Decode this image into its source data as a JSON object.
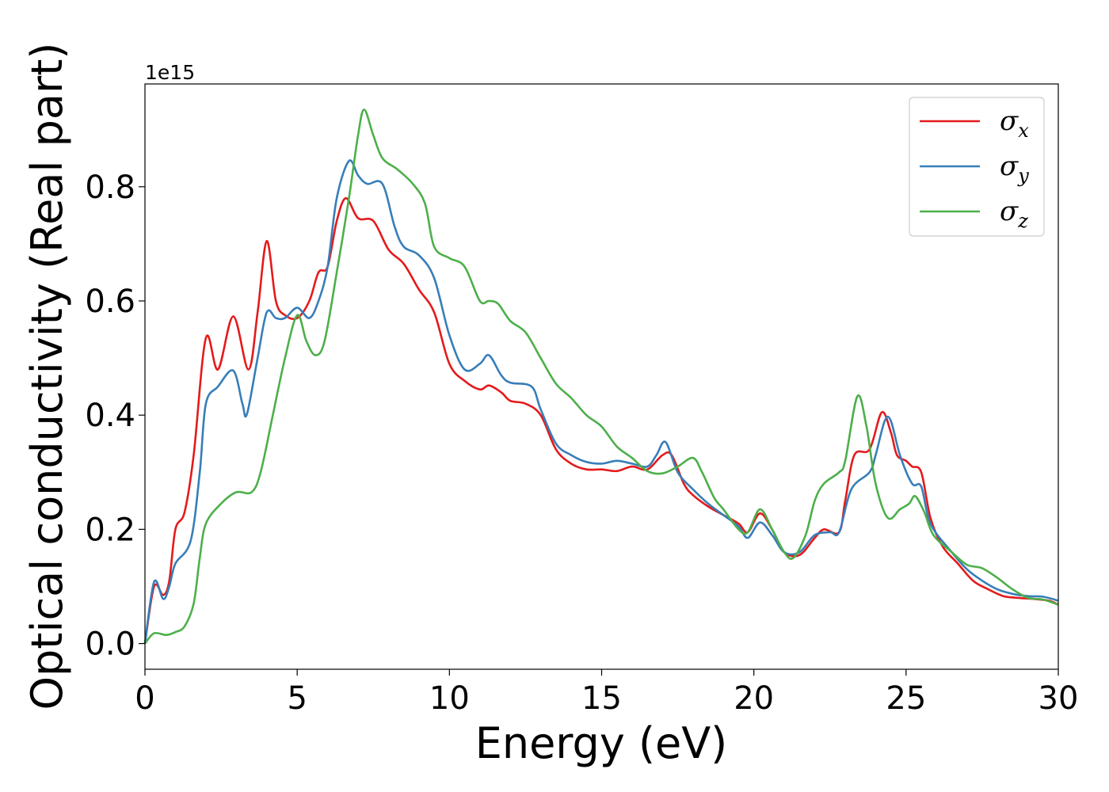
{
  "chart_data": {
    "type": "line",
    "title": "",
    "xlabel": "Energy (eV)",
    "ylabel": "Optical conductivity (Real part)",
    "y_offset_label": "1e15",
    "xlim": [
      0,
      30
    ],
    "ylim": [
      -0.045,
      0.98
    ],
    "x_ticks": [
      0,
      5,
      10,
      15,
      20,
      25,
      30
    ],
    "x_tick_labels": [
      "0",
      "5",
      "10",
      "15",
      "20",
      "25",
      "30"
    ],
    "y_ticks": [
      0.0,
      0.2,
      0.4,
      0.6,
      0.8
    ],
    "y_tick_labels": [
      "0.0",
      "0.2",
      "0.4",
      "0.6",
      "0.8"
    ],
    "grid": false,
    "legend_position": "top-right",
    "series": [
      {
        "name": "σ",
        "subscript": "x",
        "color": "#e41a1c",
        "points": [
          [
            0,
            0
          ],
          [
            0.3,
            0.1
          ],
          [
            0.6,
            0.085
          ],
          [
            0.8,
            0.11
          ],
          [
            1.0,
            0.2
          ],
          [
            1.3,
            0.23
          ],
          [
            1.6,
            0.33
          ],
          [
            2.0,
            0.535
          ],
          [
            2.4,
            0.48
          ],
          [
            2.9,
            0.573
          ],
          [
            3.4,
            0.48
          ],
          [
            3.7,
            0.58
          ],
          [
            4.0,
            0.705
          ],
          [
            4.3,
            0.6
          ],
          [
            4.6,
            0.575
          ],
          [
            5.0,
            0.57
          ],
          [
            5.4,
            0.6
          ],
          [
            5.7,
            0.65
          ],
          [
            6.0,
            0.66
          ],
          [
            6.3,
            0.74
          ],
          [
            6.6,
            0.78
          ],
          [
            7.0,
            0.745
          ],
          [
            7.5,
            0.74
          ],
          [
            8.0,
            0.69
          ],
          [
            8.5,
            0.665
          ],
          [
            9.0,
            0.62
          ],
          [
            9.5,
            0.58
          ],
          [
            10.0,
            0.49
          ],
          [
            10.5,
            0.46
          ],
          [
            11.0,
            0.445
          ],
          [
            11.3,
            0.452
          ],
          [
            11.7,
            0.44
          ],
          [
            12.0,
            0.425
          ],
          [
            12.5,
            0.42
          ],
          [
            13.0,
            0.4
          ],
          [
            13.5,
            0.34
          ],
          [
            14.0,
            0.315
          ],
          [
            14.5,
            0.305
          ],
          [
            15.0,
            0.305
          ],
          [
            15.5,
            0.302
          ],
          [
            16.0,
            0.31
          ],
          [
            16.5,
            0.305
          ],
          [
            17.0,
            0.33
          ],
          [
            17.3,
            0.33
          ],
          [
            17.7,
            0.28
          ],
          [
            18.0,
            0.26
          ],
          [
            18.5,
            0.24
          ],
          [
            19.0,
            0.225
          ],
          [
            19.5,
            0.21
          ],
          [
            19.8,
            0.195
          ],
          [
            20.2,
            0.228
          ],
          [
            20.6,
            0.2
          ],
          [
            21.0,
            0.16
          ],
          [
            21.5,
            0.155
          ],
          [
            22.0,
            0.185
          ],
          [
            22.3,
            0.2
          ],
          [
            22.8,
            0.195
          ],
          [
            23.0,
            0.25
          ],
          [
            23.3,
            0.33
          ],
          [
            23.8,
            0.34
          ],
          [
            24.2,
            0.405
          ],
          [
            24.5,
            0.37
          ],
          [
            24.7,
            0.33
          ],
          [
            25.0,
            0.32
          ],
          [
            25.2,
            0.31
          ],
          [
            25.5,
            0.3
          ],
          [
            25.8,
            0.22
          ],
          [
            26.2,
            0.17
          ],
          [
            26.7,
            0.14
          ],
          [
            27.2,
            0.11
          ],
          [
            27.7,
            0.095
          ],
          [
            28.2,
            0.083
          ],
          [
            28.7,
            0.08
          ],
          [
            29.2,
            0.078
          ],
          [
            29.7,
            0.075
          ],
          [
            30.0,
            0.068
          ]
        ]
      },
      {
        "name": "σ",
        "subscript": "y",
        "color": "#377eb8",
        "points": [
          [
            0,
            0
          ],
          [
            0.3,
            0.108
          ],
          [
            0.6,
            0.078
          ],
          [
            0.8,
            0.1
          ],
          [
            1.0,
            0.14
          ],
          [
            1.5,
            0.18
          ],
          [
            1.8,
            0.3
          ],
          [
            2.0,
            0.42
          ],
          [
            2.4,
            0.45
          ],
          [
            2.9,
            0.478
          ],
          [
            3.2,
            0.42
          ],
          [
            3.35,
            0.402
          ],
          [
            3.7,
            0.5
          ],
          [
            4.0,
            0.58
          ],
          [
            4.3,
            0.57
          ],
          [
            4.6,
            0.57
          ],
          [
            5.0,
            0.588
          ],
          [
            5.4,
            0.57
          ],
          [
            5.7,
            0.6
          ],
          [
            6.0,
            0.66
          ],
          [
            6.3,
            0.78
          ],
          [
            6.7,
            0.845
          ],
          [
            7.0,
            0.82
          ],
          [
            7.3,
            0.805
          ],
          [
            7.8,
            0.805
          ],
          [
            8.2,
            0.73
          ],
          [
            8.5,
            0.695
          ],
          [
            9.0,
            0.68
          ],
          [
            9.5,
            0.64
          ],
          [
            10.0,
            0.54
          ],
          [
            10.5,
            0.48
          ],
          [
            11.0,
            0.49
          ],
          [
            11.3,
            0.505
          ],
          [
            11.7,
            0.47
          ],
          [
            12.0,
            0.457
          ],
          [
            12.7,
            0.45
          ],
          [
            13.0,
            0.41
          ],
          [
            13.5,
            0.35
          ],
          [
            14.0,
            0.33
          ],
          [
            14.5,
            0.318
          ],
          [
            15.0,
            0.315
          ],
          [
            15.5,
            0.32
          ],
          [
            16.0,
            0.315
          ],
          [
            16.5,
            0.31
          ],
          [
            16.8,
            0.33
          ],
          [
            17.1,
            0.353
          ],
          [
            17.5,
            0.3
          ],
          [
            18.0,
            0.27
          ],
          [
            18.5,
            0.245
          ],
          [
            19.0,
            0.225
          ],
          [
            19.5,
            0.205
          ],
          [
            19.8,
            0.185
          ],
          [
            20.2,
            0.212
          ],
          [
            20.6,
            0.19
          ],
          [
            21.0,
            0.16
          ],
          [
            21.5,
            0.16
          ],
          [
            22.0,
            0.19
          ],
          [
            22.5,
            0.195
          ],
          [
            22.8,
            0.195
          ],
          [
            23.2,
            0.27
          ],
          [
            23.8,
            0.3
          ],
          [
            24.0,
            0.33
          ],
          [
            24.3,
            0.39
          ],
          [
            24.5,
            0.39
          ],
          [
            24.8,
            0.33
          ],
          [
            25.2,
            0.28
          ],
          [
            25.5,
            0.275
          ],
          [
            25.8,
            0.21
          ],
          [
            26.5,
            0.16
          ],
          [
            27.0,
            0.13
          ],
          [
            27.5,
            0.11
          ],
          [
            28.0,
            0.095
          ],
          [
            28.5,
            0.087
          ],
          [
            29.0,
            0.083
          ],
          [
            29.5,
            0.082
          ],
          [
            30.0,
            0.075
          ]
        ]
      },
      {
        "name": "σ",
        "subscript": "z",
        "color": "#4daf4a",
        "points": [
          [
            0,
            0
          ],
          [
            0.3,
            0.018
          ],
          [
            0.7,
            0.015
          ],
          [
            1.0,
            0.02
          ],
          [
            1.3,
            0.03
          ],
          [
            1.6,
            0.07
          ],
          [
            1.8,
            0.15
          ],
          [
            2.0,
            0.21
          ],
          [
            2.5,
            0.245
          ],
          [
            3.0,
            0.265
          ],
          [
            3.5,
            0.265
          ],
          [
            3.8,
            0.3
          ],
          [
            4.2,
            0.4
          ],
          [
            4.6,
            0.5
          ],
          [
            5.0,
            0.575
          ],
          [
            5.3,
            0.53
          ],
          [
            5.6,
            0.505
          ],
          [
            5.9,
            0.53
          ],
          [
            6.3,
            0.65
          ],
          [
            6.7,
            0.78
          ],
          [
            7.0,
            0.89
          ],
          [
            7.2,
            0.935
          ],
          [
            7.5,
            0.89
          ],
          [
            7.8,
            0.85
          ],
          [
            8.3,
            0.83
          ],
          [
            8.8,
            0.805
          ],
          [
            9.2,
            0.77
          ],
          [
            9.5,
            0.695
          ],
          [
            10.0,
            0.675
          ],
          [
            10.5,
            0.66
          ],
          [
            11.0,
            0.6
          ],
          [
            11.3,
            0.6
          ],
          [
            11.6,
            0.595
          ],
          [
            12.0,
            0.565
          ],
          [
            12.5,
            0.545
          ],
          [
            13.0,
            0.5
          ],
          [
            13.5,
            0.455
          ],
          [
            14.0,
            0.43
          ],
          [
            14.5,
            0.4
          ],
          [
            15.0,
            0.38
          ],
          [
            15.5,
            0.345
          ],
          [
            16.0,
            0.325
          ],
          [
            16.5,
            0.302
          ],
          [
            17.0,
            0.298
          ],
          [
            17.5,
            0.31
          ],
          [
            18.0,
            0.325
          ],
          [
            18.3,
            0.3
          ],
          [
            18.7,
            0.255
          ],
          [
            19.0,
            0.235
          ],
          [
            19.5,
            0.2
          ],
          [
            19.8,
            0.195
          ],
          [
            20.2,
            0.235
          ],
          [
            20.6,
            0.2
          ],
          [
            21.0,
            0.16
          ],
          [
            21.3,
            0.15
          ],
          [
            21.7,
            0.19
          ],
          [
            22.0,
            0.25
          ],
          [
            22.3,
            0.28
          ],
          [
            22.8,
            0.3
          ],
          [
            23.0,
            0.32
          ],
          [
            23.4,
            0.433
          ],
          [
            23.7,
            0.38
          ],
          [
            24.0,
            0.28
          ],
          [
            24.4,
            0.22
          ],
          [
            24.8,
            0.235
          ],
          [
            25.1,
            0.245
          ],
          [
            25.3,
            0.258
          ],
          [
            25.6,
            0.23
          ],
          [
            25.9,
            0.19
          ],
          [
            26.5,
            0.16
          ],
          [
            27.0,
            0.138
          ],
          [
            27.5,
            0.132
          ],
          [
            28.0,
            0.115
          ],
          [
            28.5,
            0.095
          ],
          [
            29.0,
            0.08
          ],
          [
            29.5,
            0.077
          ],
          [
            30.0,
            0.068
          ]
        ]
      }
    ]
  }
}
